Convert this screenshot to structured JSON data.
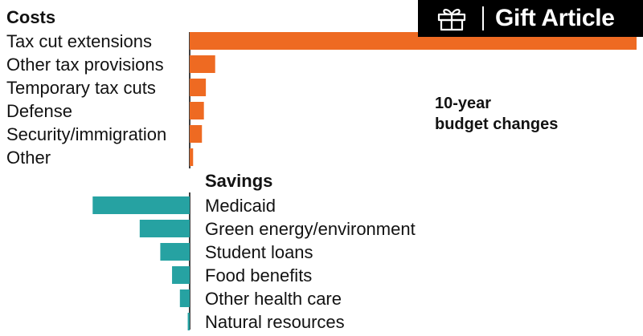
{
  "gift_button": {
    "label": "Gift Article",
    "icon": "gift-icon"
  },
  "chart_data": {
    "type": "bar",
    "annotation": "10-year\nbudget changes",
    "groups": [
      {
        "name": "Costs",
        "color": "#ee6a22",
        "categories": [
          "Tax cut extensions",
          "Other tax provisions",
          "Temporary tax cuts",
          "Defense",
          "Security/immigration",
          "Other"
        ],
        "values": [
          4560,
          260,
          165,
          145,
          125,
          35
        ]
      },
      {
        "name": "Savings",
        "color": "#26a2a2",
        "categories": [
          "Medicaid",
          "Green energy/environment",
          "Student loans",
          "Food benefits",
          "Other health care",
          "Natural resources"
        ],
        "values": [
          -990,
          -510,
          -300,
          -180,
          -100,
          -20
        ]
      }
    ]
  }
}
